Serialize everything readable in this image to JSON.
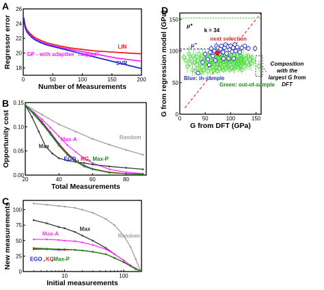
{
  "colors": {
    "lin": "#e8231e",
    "gp": "#ff22ff",
    "svr": "#1f26d8",
    "random": "#9e9e9e",
    "max": "#333333",
    "maxa": "#ff33ff",
    "ego": "#1f26d8",
    "kg": "#e8231e",
    "maxp": "#1a8a1a",
    "green": "#4ddc3c",
    "blue": "#2c35c8",
    "red": "#e8231e"
  },
  "chart_data": [
    {
      "panel": "A",
      "type": "line",
      "xlabel": "Number of Measurements",
      "ylabel": "Regressor error",
      "xlim": [
        0,
        200
      ],
      "ylim": [
        17,
        26
      ],
      "xticks": [
        0,
        50,
        100,
        150,
        200
      ],
      "yticks": [
        18,
        20,
        22,
        24,
        26
      ],
      "series": [
        {
          "name": "LIN",
          "x": [
            1,
            3,
            6,
            10,
            15,
            20,
            30,
            40,
            60,
            80,
            100,
            120,
            140,
            160,
            180,
            200
          ],
          "y": [
            24.6,
            23.8,
            23.2,
            22.8,
            22.4,
            22.1,
            21.7,
            21.4,
            21.0,
            20.7,
            20.5,
            20.3,
            20.2,
            20.1,
            20.0,
            19.9
          ]
        },
        {
          "name": "GP - with adaptive \"nugget\"",
          "x": [
            1,
            3,
            6,
            10,
            15,
            20,
            30,
            40,
            60,
            80,
            100,
            120,
            140,
            160,
            180,
            200
          ],
          "y": [
            24.7,
            23.6,
            23.0,
            22.6,
            22.2,
            21.9,
            21.5,
            21.2,
            20.8,
            20.5,
            20.2,
            19.9,
            19.6,
            19.3,
            19.1,
            18.9
          ]
        },
        {
          "name": "SVR",
          "x": [
            1,
            3,
            6,
            10,
            15,
            20,
            30,
            40,
            60,
            80,
            100,
            120,
            140,
            160,
            180,
            200
          ],
          "y": [
            24.8,
            23.5,
            22.9,
            22.5,
            22.1,
            21.8,
            21.4,
            21.1,
            20.7,
            20.3,
            19.9,
            19.5,
            19.1,
            18.7,
            18.3,
            17.9
          ]
        }
      ],
      "labels": {
        "lin": "LIN",
        "gp": "GP - with adaptive \"nugget\"",
        "svr": "SVR"
      }
    },
    {
      "panel": "B",
      "type": "line",
      "xlabel": "Total Measurements",
      "ylabel": "Opportunity cost",
      "xlim": [
        20,
        92
      ],
      "ylim": [
        0,
        0.15
      ],
      "xticks": [
        20,
        40,
        60,
        80
      ],
      "yticks": [
        0.0,
        0.05,
        0.1,
        0.15
      ],
      "series": [
        {
          "name": "Random",
          "x": [
            20,
            30,
            40,
            50,
            60,
            70,
            80,
            90
          ],
          "y": [
            0.145,
            0.125,
            0.105,
            0.09,
            0.075,
            0.063,
            0.052,
            0.042
          ]
        },
        {
          "name": "Max-A",
          "x": [
            20,
            25,
            30,
            35,
            40,
            45,
            50,
            55,
            60,
            70,
            80,
            90
          ],
          "y": [
            0.145,
            0.13,
            0.115,
            0.098,
            0.08,
            0.062,
            0.048,
            0.035,
            0.025,
            0.012,
            0.006,
            0.003
          ]
        },
        {
          "name": "Max",
          "x": [
            20,
            24,
            28,
            32,
            36,
            40,
            45,
            50,
            55,
            60,
            70,
            80,
            90
          ],
          "y": [
            0.145,
            0.12,
            0.09,
            0.06,
            0.045,
            0.035,
            0.03,
            0.027,
            0.025,
            0.022,
            0.018,
            0.015,
            0.012
          ]
        },
        {
          "name": "EGO",
          "x": [
            20,
            25,
            30,
            35,
            40,
            45,
            50,
            55,
            60,
            70,
            80,
            90
          ],
          "y": [
            0.145,
            0.128,
            0.11,
            0.088,
            0.065,
            0.045,
            0.03,
            0.02,
            0.013,
            0.006,
            0.003,
            0.002
          ]
        },
        {
          "name": "KG",
          "x": [
            20,
            25,
            30,
            35,
            40,
            45,
            50,
            55,
            60,
            70,
            80,
            90
          ],
          "y": [
            0.145,
            0.127,
            0.108,
            0.086,
            0.063,
            0.044,
            0.029,
            0.019,
            0.012,
            0.006,
            0.003,
            0.002
          ]
        },
        {
          "name": "Max-P",
          "x": [
            20,
            25,
            30,
            35,
            40,
            45,
            50,
            55,
            60,
            70,
            80,
            90
          ],
          "y": [
            0.145,
            0.126,
            0.106,
            0.084,
            0.061,
            0.042,
            0.028,
            0.018,
            0.012,
            0.005,
            0.003,
            0.002
          ]
        }
      ],
      "labels": {
        "random": "Random",
        "maxa": "Max-A",
        "max": "Max",
        "ego": "EGO",
        "kg": "KG",
        "maxp": "Max-P",
        "comma": ","
      }
    },
    {
      "panel": "C",
      "type": "line",
      "xscale": "log",
      "xlabel": "Initial measurements",
      "ylabel": "New measurements",
      "xlim": [
        2,
        200
      ],
      "ylim": [
        0,
        115
      ],
      "xticks": [
        10,
        100
      ],
      "yticks": [
        0,
        25,
        50,
        75,
        100
      ],
      "series": [
        {
          "name": "Random",
          "x": [
            3,
            5,
            8,
            10,
            15,
            20,
            30,
            50,
            70,
            100,
            130,
            160,
            190
          ],
          "y": [
            110,
            108,
            106,
            105,
            103,
            100,
            95,
            85,
            75,
            58,
            40,
            20,
            2
          ]
        },
        {
          "name": "Max",
          "x": [
            3,
            5,
            8,
            10,
            15,
            20,
            30,
            50,
            70,
            100,
            130,
            160,
            190
          ],
          "y": [
            83,
            78,
            72,
            70,
            64,
            58,
            50,
            38,
            28,
            18,
            10,
            5,
            1
          ]
        },
        {
          "name": "Max-A",
          "x": [
            3,
            5,
            8,
            10,
            15,
            20,
            30,
            50,
            70,
            100,
            130,
            160,
            190
          ],
          "y": [
            52,
            52,
            51,
            50,
            49,
            47,
            43,
            36,
            28,
            18,
            10,
            5,
            1
          ]
        },
        {
          "name": "EGO",
          "x": [
            3,
            5,
            8,
            10,
            15,
            20,
            30,
            50,
            70,
            100,
            130,
            160,
            190
          ],
          "y": [
            36,
            36,
            35,
            35,
            35,
            34,
            32,
            28,
            22,
            15,
            9,
            4,
            1
          ]
        },
        {
          "name": "KG",
          "x": [
            3,
            5,
            8,
            10,
            15,
            20,
            30,
            50,
            70,
            100,
            130,
            160,
            190
          ],
          "y": [
            37,
            36,
            36,
            35,
            35,
            34,
            32,
            28,
            22,
            15,
            9,
            4,
            1
          ]
        },
        {
          "name": "Max-P",
          "x": [
            3,
            5,
            8,
            10,
            15,
            20,
            30,
            50,
            70,
            100,
            130,
            160,
            190
          ],
          "y": [
            38,
            37,
            36,
            36,
            35,
            34,
            32,
            28,
            22,
            15,
            9,
            4,
            1
          ]
        }
      ],
      "labels": {
        "random": "Random",
        "max": "Max",
        "maxa": "Max-A",
        "ego": "EGO",
        "kg": "KG",
        "maxp": "Max-P",
        "comma": ","
      }
    },
    {
      "panel": "D",
      "type": "scatter",
      "xlabel": "G from DFT (GPa)",
      "ylabel": "G from regression model (GPa)",
      "xlim": [
        0,
        160
      ],
      "ylim": [
        0,
        160
      ],
      "xticks": [
        0,
        50,
        100,
        150
      ],
      "yticks": [
        0,
        50,
        100,
        150
      ],
      "mu_star": 152,
      "mu_double_prime": 103,
      "k_label": "k = 34",
      "labels": {
        "mu_star": "μ*",
        "mu_double_prime": "μ''",
        "next_selection": "next selection",
        "in_sample": "Blue: in-sample",
        "out_of_sample": "Green: out-of-sample",
        "callout": [
          "Composition",
          "with the",
          "largest G from",
          "DFT"
        ]
      },
      "next_selection_point": [
        74,
        97
      ],
      "outlier_point": [
        156,
        76
      ],
      "in_sample_points": [
        [
          36,
          65
        ],
        [
          45,
          82
        ],
        [
          50,
          95
        ],
        [
          55,
          87
        ],
        [
          60,
          98
        ],
        [
          62,
          104
        ],
        [
          65,
          92
        ],
        [
          68,
          100
        ],
        [
          72,
          108
        ],
        [
          75,
          105
        ],
        [
          78,
          95
        ],
        [
          80,
          103
        ],
        [
          82,
          108
        ],
        [
          85,
          98
        ],
        [
          88,
          105
        ],
        [
          90,
          110
        ],
        [
          92,
          96
        ],
        [
          95,
          107
        ],
        [
          98,
          102
        ],
        [
          100,
          108
        ],
        [
          103,
          99
        ],
        [
          105,
          105
        ],
        [
          108,
          110
        ],
        [
          110,
          100
        ],
        [
          113,
          106
        ],
        [
          118,
          98
        ],
        [
          122,
          105
        ],
        [
          128,
          108
        ],
        [
          135,
          104
        ],
        [
          148,
          104
        ],
        [
          70,
          85
        ],
        [
          86,
          88
        ],
        [
          96,
          88
        ],
        [
          106,
          88
        ],
        [
          58,
          78
        ]
      ],
      "out_of_sample_points": [
        [
          8,
          90
        ],
        [
          12,
          85
        ],
        [
          15,
          75
        ],
        [
          18,
          95
        ],
        [
          20,
          80
        ],
        [
          22,
          88
        ],
        [
          25,
          70
        ],
        [
          27,
          92
        ],
        [
          28,
          82
        ],
        [
          30,
          68
        ],
        [
          32,
          90
        ],
        [
          33,
          78
        ],
        [
          35,
          85
        ],
        [
          37,
          72
        ],
        [
          38,
          95
        ],
        [
          40,
          80
        ],
        [
          41,
          88
        ],
        [
          42,
          66
        ],
        [
          44,
          75
        ],
        [
          45,
          92
        ],
        [
          47,
          85
        ],
        [
          48,
          70
        ],
        [
          50,
          80
        ],
        [
          51,
          88
        ],
        [
          52,
          76
        ],
        [
          54,
          92
        ],
        [
          55,
          68
        ],
        [
          56,
          84
        ],
        [
          57,
          78
        ],
        [
          58,
          90
        ],
        [
          60,
          72
        ],
        [
          61,
          86
        ],
        [
          62,
          80
        ],
        [
          63,
          94
        ],
        [
          64,
          74
        ],
        [
          65,
          88
        ],
        [
          66,
          82
        ],
        [
          67,
          70
        ],
        [
          68,
          92
        ],
        [
          69,
          78
        ],
        [
          70,
          86
        ],
        [
          71,
          74
        ],
        [
          72,
          90
        ],
        [
          73,
          80
        ],
        [
          74,
          68
        ],
        [
          75,
          88
        ],
        [
          76,
          78
        ],
        [
          77,
          92
        ],
        [
          78,
          84
        ],
        [
          79,
          72
        ],
        [
          80,
          90
        ],
        [
          81,
          80
        ],
        [
          82,
          86
        ],
        [
          83,
          74
        ],
        [
          84,
          92
        ],
        [
          85,
          82
        ],
        [
          86,
          70
        ],
        [
          87,
          88
        ],
        [
          88,
          78
        ],
        [
          89,
          94
        ],
        [
          90,
          84
        ],
        [
          91,
          74
        ],
        [
          92,
          90
        ],
        [
          93,
          80
        ],
        [
          94,
          86
        ],
        [
          95,
          76
        ],
        [
          96,
          92
        ],
        [
          97,
          82
        ],
        [
          98,
          70
        ],
        [
          99,
          88
        ],
        [
          100,
          78
        ],
        [
          101,
          94
        ],
        [
          102,
          84
        ],
        [
          103,
          74
        ],
        [
          104,
          90
        ],
        [
          105,
          80
        ],
        [
          106,
          86
        ],
        [
          107,
          72
        ],
        [
          108,
          92
        ],
        [
          109,
          82
        ],
        [
          110,
          76
        ],
        [
          111,
          88
        ],
        [
          112,
          80
        ],
        [
          113,
          92
        ],
        [
          114,
          84
        ],
        [
          115,
          74
        ],
        [
          116,
          90
        ],
        [
          117,
          80
        ],
        [
          118,
          86
        ],
        [
          119,
          76
        ],
        [
          120,
          92
        ],
        [
          121,
          82
        ],
        [
          122,
          70
        ],
        [
          123,
          88
        ],
        [
          124,
          80
        ],
        [
          125,
          90
        ],
        [
          126,
          84
        ],
        [
          128,
          76
        ],
        [
          130,
          88
        ],
        [
          132,
          82
        ],
        [
          134,
          92
        ],
        [
          136,
          78
        ],
        [
          138,
          86
        ],
        [
          140,
          80
        ],
        [
          142,
          90
        ],
        [
          145,
          84
        ]
      ]
    }
  ]
}
